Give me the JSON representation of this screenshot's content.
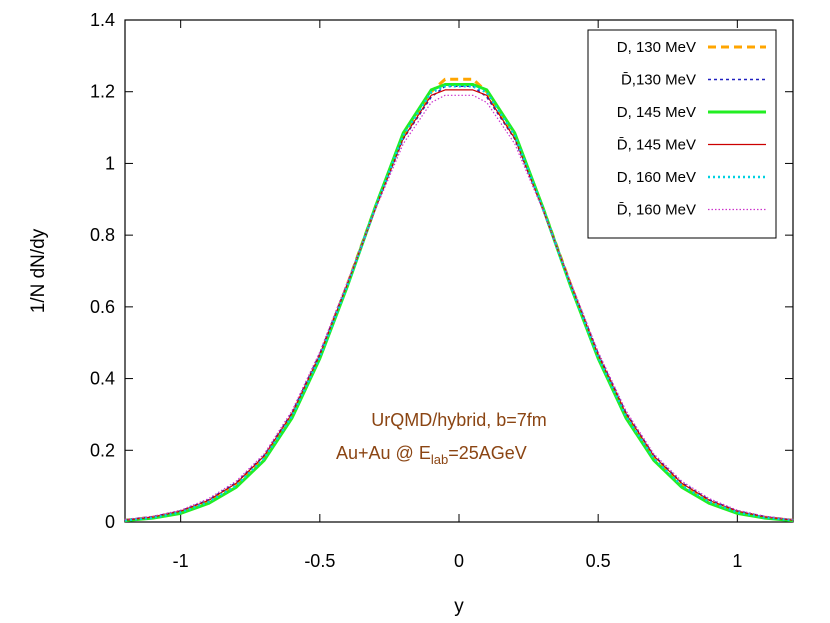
{
  "chart_data": {
    "type": "line",
    "xlabel": "y",
    "ylabel": "1/N dN/dy",
    "xlim": [
      -1.2,
      1.2
    ],
    "ylim": [
      0,
      1.4
    ],
    "xticks": [
      -1,
      -0.5,
      0,
      0.5,
      1
    ],
    "xtick_labels": [
      "-1",
      "-0.5",
      "0",
      "0.5",
      "1"
    ],
    "yticks": [
      0,
      0.2,
      0.4,
      0.6,
      0.8,
      1,
      1.2,
      1.4
    ],
    "ytick_labels": [
      "0",
      "0.2",
      "0.4",
      "0.6",
      "0.8",
      "1",
      "1.2",
      "1.4"
    ],
    "grid": false,
    "legend_position": "top-right",
    "annotation_lines": [
      "UrQMD/hybrid, b=7fm",
      "Au+Au @ E",
      "lab",
      "=25AGeV"
    ],
    "x": [
      -1.2,
      -1.1,
      -1.0,
      -0.9,
      -0.8,
      -0.7,
      -0.6,
      -0.5,
      -0.4,
      -0.3,
      -0.2,
      -0.1,
      -0.05,
      0.05,
      0.1,
      0.2,
      0.3,
      0.4,
      0.5,
      0.6,
      0.7,
      0.8,
      0.9,
      1.0,
      1.1,
      1.2
    ],
    "series": [
      {
        "name": "D, 130 MeV",
        "color": "#ffa500",
        "dash": "8,5",
        "width": 3,
        "values": [
          0.005,
          0.013,
          0.028,
          0.058,
          0.105,
          0.18,
          0.298,
          0.462,
          0.665,
          0.88,
          1.08,
          1.2,
          1.235,
          1.235,
          1.2,
          1.08,
          0.88,
          0.665,
          0.462,
          0.298,
          0.18,
          0.105,
          0.058,
          0.028,
          0.013,
          0.005
        ]
      },
      {
        "name": "D̄,130 MeV",
        "color": "#2020c0",
        "dash": "3,3",
        "width": 1.5,
        "values": [
          0.006,
          0.015,
          0.031,
          0.062,
          0.11,
          0.186,
          0.305,
          0.47,
          0.668,
          0.876,
          1.068,
          1.185,
          1.215,
          1.215,
          1.185,
          1.068,
          0.876,
          0.668,
          0.47,
          0.305,
          0.186,
          0.11,
          0.062,
          0.031,
          0.015,
          0.006
        ]
      },
      {
        "name": "D, 145 MeV",
        "color": "#22ee22",
        "dash": "",
        "width": 3,
        "values": [
          0.004,
          0.011,
          0.024,
          0.052,
          0.097,
          0.172,
          0.29,
          0.456,
          0.66,
          0.88,
          1.085,
          1.205,
          1.22,
          1.22,
          1.205,
          1.085,
          0.88,
          0.66,
          0.456,
          0.29,
          0.172,
          0.097,
          0.052,
          0.024,
          0.011,
          0.004
        ]
      },
      {
        "name": "D̄, 145 MeV",
        "color": "#cc0000",
        "dash": "",
        "width": 1.2,
        "values": [
          0.005,
          0.014,
          0.03,
          0.06,
          0.108,
          0.184,
          0.302,
          0.466,
          0.666,
          0.875,
          1.07,
          1.19,
          1.205,
          1.205,
          1.19,
          1.07,
          0.875,
          0.666,
          0.466,
          0.302,
          0.184,
          0.108,
          0.06,
          0.03,
          0.014,
          0.005
        ]
      },
      {
        "name": "D, 160 MeV",
        "color": "#00d0e0",
        "dash": "2,3",
        "width": 2.5,
        "values": [
          0.005,
          0.012,
          0.027,
          0.056,
          0.102,
          0.178,
          0.295,
          0.46,
          0.662,
          0.878,
          1.078,
          1.198,
          1.215,
          1.215,
          1.198,
          1.078,
          0.878,
          0.662,
          0.46,
          0.295,
          0.178,
          0.102,
          0.056,
          0.027,
          0.012,
          0.005
        ]
      },
      {
        "name": "D̄, 160 MeV",
        "color": "#cc33cc",
        "dash": "1.5,2",
        "width": 1.2,
        "values": [
          0.007,
          0.016,
          0.033,
          0.065,
          0.114,
          0.19,
          0.31,
          0.474,
          0.672,
          0.872,
          1.055,
          1.17,
          1.19,
          1.19,
          1.17,
          1.055,
          0.872,
          0.672,
          0.474,
          0.31,
          0.19,
          0.114,
          0.065,
          0.033,
          0.016,
          0.007
        ]
      }
    ]
  }
}
